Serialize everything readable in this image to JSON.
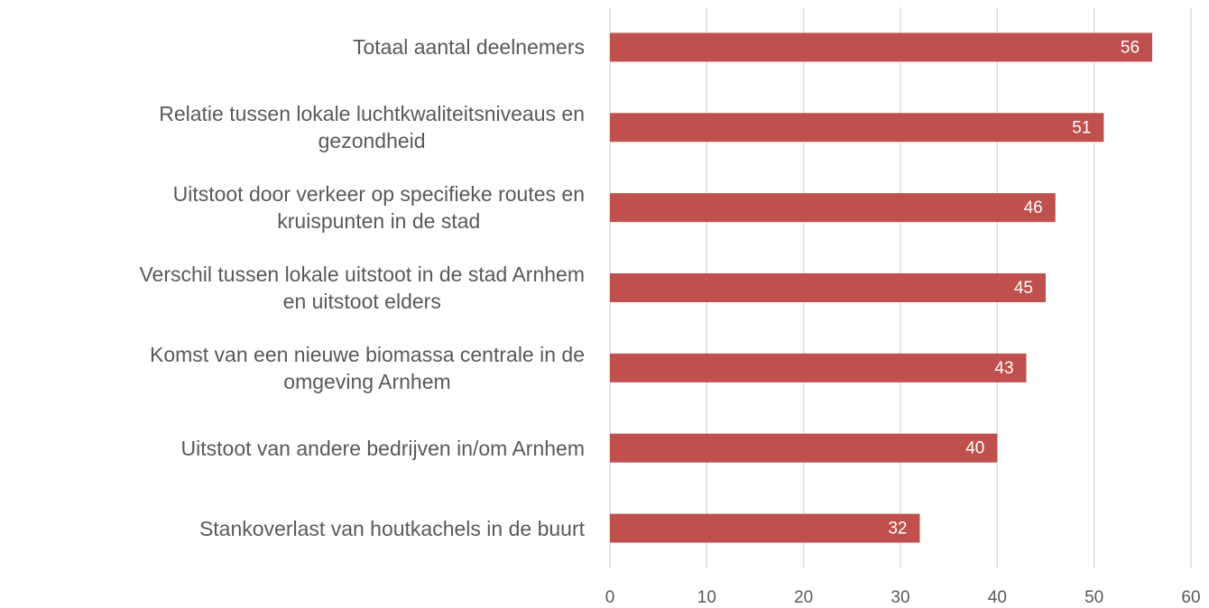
{
  "chart_data": {
    "type": "bar",
    "orientation": "horizontal",
    "categories": [
      [
        "Totaal aantal deelnemers"
      ],
      [
        "Relatie tussen lokale luchtkwaliteitsniveaus en",
        "gezondheid"
      ],
      [
        "Uitstoot door verkeer op specifieke routes en",
        "kruispunten in de stad"
      ],
      [
        "Verschil tussen lokale uitstoot in de stad Arnhem",
        "en uitstoot elders"
      ],
      [
        "Komst van een nieuwe biomassa centrale in de",
        "omgeving Arnhem"
      ],
      [
        "Uitstoot van andere bedrijven in/om Arnhem"
      ],
      [
        "Stankoverlast van houtkachels in de buurt"
      ]
    ],
    "values": [
      56,
      51,
      46,
      45,
      43,
      40,
      32
    ],
    "color": "#c0504d",
    "xlim": [
      0,
      60
    ],
    "xticks": [
      0,
      10,
      20,
      30,
      40,
      50,
      60
    ],
    "grid": true
  }
}
